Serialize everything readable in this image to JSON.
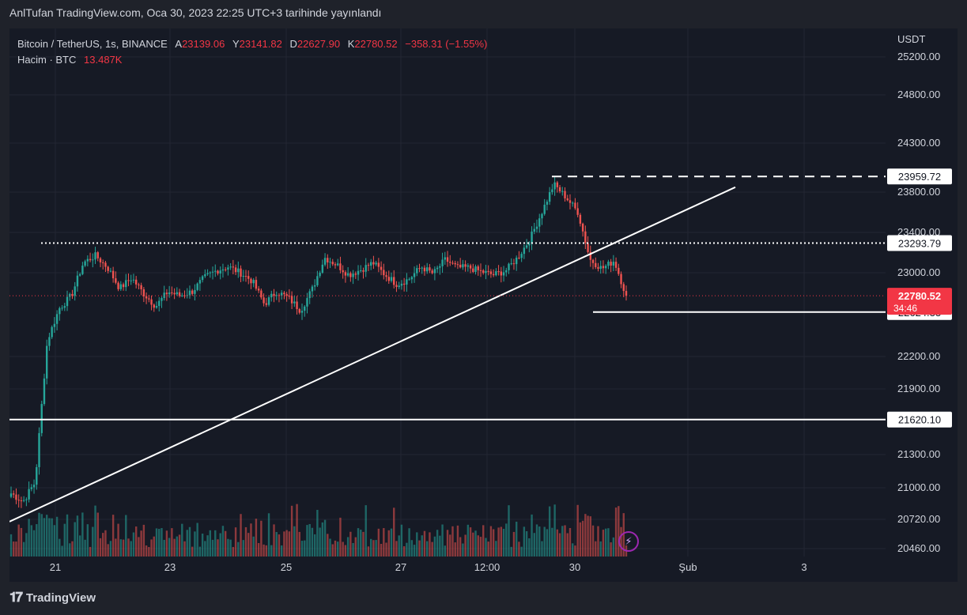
{
  "header": {
    "caption": "AnlTufan TradingView.com, Oca 30, 2023 22:25 UTC+3 tarihinde yayınlandı"
  },
  "legend": {
    "symbol": "Bitcoin / TetherUS, 1s, BINANCE",
    "open_label": "A",
    "open": "23139.06",
    "high_label": "Y",
    "high": "23141.82",
    "low_label": "D",
    "low": "22627.90",
    "close_label": "K",
    "close": "22780.52",
    "change": "−358.31 (−1.55%)",
    "volume_label": "Hacim · BTC",
    "volume": "13.487K"
  },
  "axis": {
    "currency": "USDT",
    "y_ticks": [
      "25200.00",
      "24800.00",
      "24300.00",
      "23800.00",
      "23400.00",
      "23000.00",
      "22200.00",
      "21900.00",
      "21300.00",
      "21000.00",
      "20720.00",
      "20460.00"
    ],
    "x_ticks": [
      "21",
      "23",
      "25",
      "27",
      "12:00",
      "30",
      "Şub",
      "3"
    ]
  },
  "price_labels": [
    {
      "value": "23959.72",
      "style": "white"
    },
    {
      "value": "23293.79",
      "style": "white"
    },
    {
      "value": "22624.33",
      "style": "white"
    },
    {
      "value": "21620.10",
      "style": "white"
    }
  ],
  "last_price": {
    "value": "22780.52",
    "countdown": "34:46",
    "color": "#f23645"
  },
  "colors": {
    "up": "#26a69a",
    "down": "#ef5350",
    "background": "#161a25",
    "text": "#d1d4dc"
  },
  "branding": {
    "logo_text": "TradingView"
  },
  "chart_data": {
    "type": "candlestick",
    "symbol": "Bitcoin / TetherUS",
    "interval": "1s",
    "exchange": "BINANCE",
    "ylabel": "USDT",
    "y_ticks": [
      25200,
      24800,
      24300,
      23800,
      23400,
      23000,
      22200,
      21900,
      21300,
      21000,
      20720,
      20460
    ],
    "x_ticks": [
      "21",
      "23",
      "25",
      "27",
      "12:00",
      "30",
      "Şub",
      "3"
    ],
    "series": [
      {
        "name": "Bitcoin / TetherUS",
        "anchors": [
          [
            "20",
            20950
          ],
          [
            "20",
            20880
          ],
          [
            "20",
            21050
          ],
          [
            "21",
            22350
          ],
          [
            "21",
            22660
          ],
          [
            "21",
            22780
          ],
          [
            "21",
            23100
          ],
          [
            "21",
            23170
          ],
          [
            "22",
            23050
          ],
          [
            "22",
            22850
          ],
          [
            "22",
            22950
          ],
          [
            "22",
            22800
          ],
          [
            "23",
            22680
          ],
          [
            "23",
            22820
          ],
          [
            "23",
            22780
          ],
          [
            "23",
            22820
          ],
          [
            "24",
            22950
          ],
          [
            "24",
            23020
          ],
          [
            "24",
            23060
          ],
          [
            "24",
            23000
          ],
          [
            "24",
            22920
          ],
          [
            "25",
            22700
          ],
          [
            "25",
            22820
          ],
          [
            "25",
            22760
          ],
          [
            "25",
            22640
          ],
          [
            "26",
            22850
          ],
          [
            "26",
            23150
          ],
          [
            "26",
            23080
          ],
          [
            "26",
            22980
          ],
          [
            "26",
            23030
          ],
          [
            "27",
            23100
          ],
          [
            "27",
            22980
          ],
          [
            "27",
            22890
          ],
          [
            "27",
            22940
          ],
          [
            "27",
            23060
          ],
          [
            "27",
            22990
          ],
          [
            "28",
            23130
          ],
          [
            "28",
            23050
          ],
          [
            "28",
            23050
          ],
          [
            "28",
            23010
          ],
          [
            "28",
            22980
          ],
          [
            "29",
            23020
          ],
          [
            "29",
            23150
          ],
          [
            "29",
            23330
          ],
          [
            "29",
            23600
          ],
          [
            "30",
            23880
          ],
          [
            "30",
            23750
          ],
          [
            "30",
            23600
          ],
          [
            "30",
            23130
          ],
          [
            "30",
            23040
          ],
          [
            "30",
            23120
          ],
          [
            "30",
            22780
          ]
        ]
      }
    ],
    "horizontal_levels": [
      23959.72,
      23293.79,
      22624.33,
      21620.1
    ],
    "trendline": {
      "from": 20700,
      "to": 23850
    },
    "last": 22780.52,
    "grid": true
  }
}
